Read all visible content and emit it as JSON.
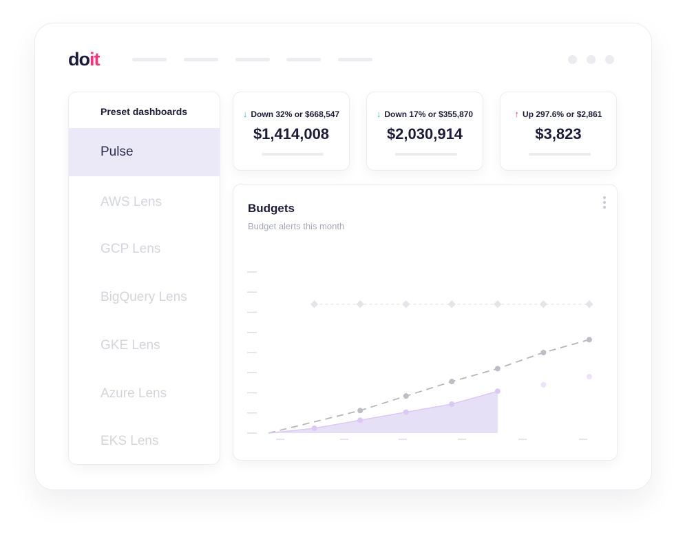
{
  "brand": {
    "logo_do": "do",
    "logo_it": "it",
    "colors": {
      "accent": "#ff2e77",
      "ink": "#1b1b3a",
      "highlight": "#ebe8f8",
      "down": "#2ec4b6",
      "up": "#ff2e77"
    }
  },
  "sidebar": {
    "header": "Preset dashboards",
    "items": [
      {
        "label": "Pulse",
        "active": true
      },
      {
        "label": "AWS Lens"
      },
      {
        "label": "GCP Lens"
      },
      {
        "label": "BigQuery Lens"
      },
      {
        "label": "GKE Lens"
      },
      {
        "label": "Azure Lens"
      },
      {
        "label": "EKS Lens"
      }
    ]
  },
  "stats": [
    {
      "direction": "down",
      "arrow": "↓",
      "delta": "Down 32% or $668,547",
      "value": "$1,414,008"
    },
    {
      "direction": "down",
      "arrow": "↓",
      "delta": "Down 17% or $355,870",
      "value": "$2,030,914"
    },
    {
      "direction": "up",
      "arrow": "↑",
      "delta": "Up 297.6% or $2,861",
      "value": "$3,823"
    }
  ],
  "budgets": {
    "title": "Budgets",
    "subtitle": "Budget alerts this month",
    "menu_icon": "more-vertical-icon"
  },
  "chart_data": {
    "type": "line",
    "x": [
      0,
      1,
      2,
      3,
      4,
      5,
      6,
      7
    ],
    "ylim": [
      0,
      10
    ],
    "grid": false,
    "series": [
      {
        "style": "dashed-diamond",
        "color": "#dcdce4",
        "values": [
          null,
          8,
          8,
          8,
          8,
          8,
          8,
          8
        ]
      },
      {
        "style": "dashed-forecast",
        "color": "#b4b4bc",
        "values": [
          0,
          null,
          1.4,
          2.3,
          3.2,
          4.0,
          5.0,
          5.8
        ]
      },
      {
        "style": "area",
        "color": "#e6e0f6",
        "values": [
          0,
          0.3,
          0.8,
          1.3,
          1.8,
          2.6,
          null,
          null
        ]
      },
      {
        "style": "projection",
        "color": "#ede2fa",
        "values": [
          null,
          null,
          null,
          null,
          null,
          null,
          3.0,
          3.5
        ]
      }
    ]
  }
}
